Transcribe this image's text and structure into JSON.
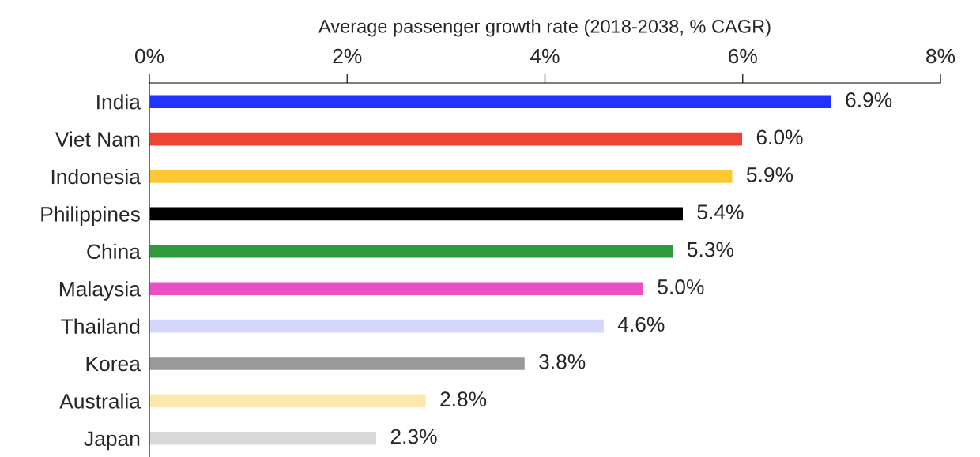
{
  "chart_data": {
    "type": "bar",
    "orientation": "horizontal",
    "xlabel": "Average passenger growth rate (2018-2038, % CAGR)",
    "categories": [
      "India",
      "Viet Nam",
      "Indonesia",
      "Philippines",
      "China",
      "Malaysia",
      "Thailand",
      "Korea",
      "Australia",
      "Japan"
    ],
    "values": [
      6.9,
      6.0,
      5.9,
      5.4,
      5.3,
      5.0,
      4.6,
      3.8,
      2.8,
      2.3
    ],
    "colors": [
      "#2233ff",
      "#ee4433",
      "#fcc933",
      "#000000",
      "#2e9a3a",
      "#ee4dc8",
      "#d4d6fa",
      "#999999",
      "#fde8b0",
      "#d9d9d9"
    ],
    "value_labels": [
      "6.9%",
      "6.0%",
      "5.9%",
      "5.4%",
      "5.3%",
      "5.0%",
      "4.6%",
      "3.8%",
      "2.8%",
      "2.3%"
    ],
    "xlim": [
      0,
      8
    ],
    "xticks": [
      {
        "value": 0,
        "label": "0%"
      },
      {
        "value": 2,
        "label": "2%"
      },
      {
        "value": 4,
        "label": "4%"
      },
      {
        "value": 6,
        "label": "6%"
      },
      {
        "value": 8,
        "label": "8%"
      }
    ],
    "grid": false,
    "legend": false
  }
}
